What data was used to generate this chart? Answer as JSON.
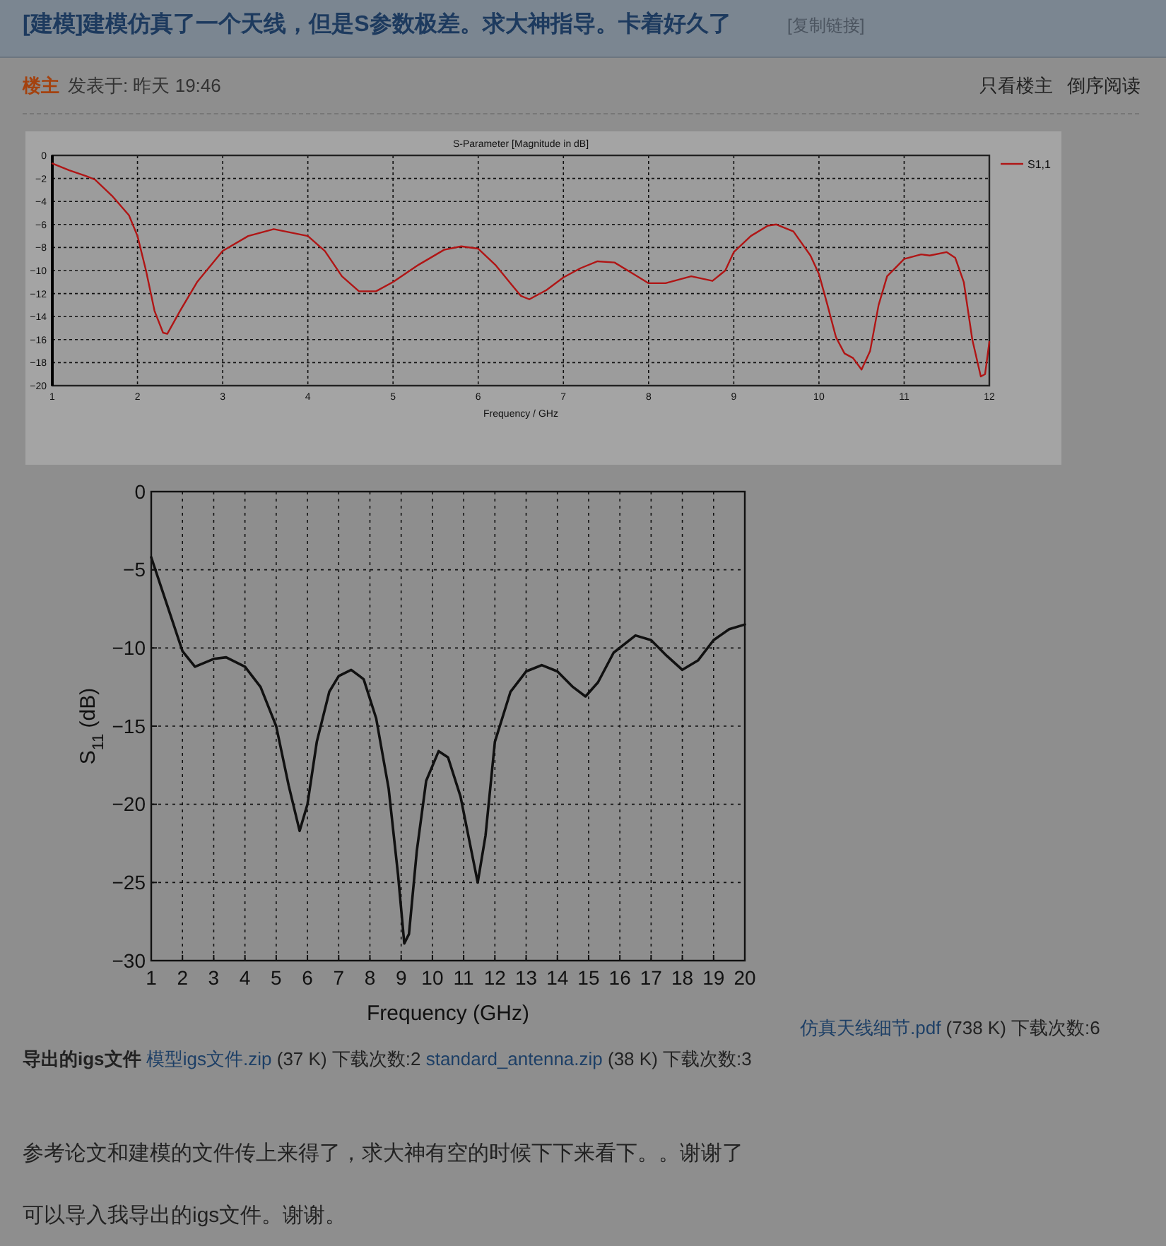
{
  "chart_data": [
    {
      "type": "line",
      "title": "S-Parameter [Magnitude in dB]",
      "xlabel": "Frequency / GHz",
      "xlim": [
        1,
        12
      ],
      "xticks": [
        1,
        2,
        3,
        4,
        5,
        6,
        7,
        8,
        9,
        10,
        11,
        12
      ],
      "ylim": [
        -20,
        0
      ],
      "yticks": [
        0,
        -2,
        -4,
        -6,
        -8,
        -10,
        -12,
        -14,
        -16,
        -18,
        -20
      ],
      "grid": true,
      "legend": "right",
      "annotations": [
        "[建模]建模仿真了一个天线，但是S参数极差。求大神指导。卡着好久了",
        "[复制链接]",
        "楼主",
        "发表于: 昨天 19:46",
        "只看楼主",
        "倒序阅读"
      ],
      "series": [
        {
          "name": "S1,1",
          "color": "#b01515",
          "x": [
            1,
            1.2,
            1.4,
            1.5,
            1.7,
            1.9,
            2.0,
            2.1,
            2.2,
            2.3,
            2.35,
            2.5,
            2.7,
            3.0,
            3.3,
            3.6,
            4.0,
            4.2,
            4.4,
            4.6,
            4.8,
            5.0,
            5.3,
            5.6,
            5.8,
            6.0,
            6.2,
            6.4,
            6.5,
            6.6,
            6.8,
            7.0,
            7.2,
            7.4,
            7.6,
            7.8,
            8.0,
            8.2,
            8.5,
            8.75,
            8.9,
            9.0,
            9.2,
            9.4,
            9.5,
            9.7,
            9.9,
            10.0,
            10.1,
            10.2,
            10.3,
            10.4,
            10.5,
            10.6,
            10.7,
            10.8,
            11.0,
            11.2,
            11.3,
            11.5,
            11.6,
            11.7,
            11.8,
            11.9,
            11.95,
            12.0
          ],
          "values": [
            -0.7,
            -1.3,
            -1.8,
            -2.1,
            -3.5,
            -5.2,
            -7,
            -10,
            -13.5,
            -15.4,
            -15.5,
            -13.5,
            -11,
            -8.3,
            -7,
            -6.4,
            -7,
            -8.3,
            -10.5,
            -11.8,
            -11.8,
            -11,
            -9.5,
            -8.2,
            -7.9,
            -8.1,
            -9.5,
            -11.3,
            -12.2,
            -12.5,
            -11.7,
            -10.6,
            -9.8,
            -9.2,
            -9.3,
            -10.2,
            -11.1,
            -11.1,
            -10.5,
            -10.9,
            -10,
            -8.4,
            -7,
            -6.1,
            -6,
            -6.6,
            -8.7,
            -10.3,
            -13,
            -15.8,
            -17.2,
            -17.6,
            -18.6,
            -17,
            -13,
            -10.5,
            -9,
            -8.6,
            -8.7,
            -8.4,
            -8.9,
            -11,
            -16,
            -19.2,
            -19,
            -16.2
          ]
        }
      ]
    },
    {
      "type": "line",
      "xlabel": "Frequency (GHz)",
      "ylabel": "S$_{11}$ (dB)",
      "xlim": [
        1,
        20
      ],
      "xticks": [
        1,
        2,
        3,
        4,
        5,
        6,
        7,
        8,
        9,
        10,
        11,
        12,
        13,
        14,
        15,
        16,
        17,
        18,
        19,
        20
      ],
      "ylim": [
        -30,
        0
      ],
      "yticks": [
        0,
        -5,
        -10,
        -15,
        -20,
        -25,
        -30
      ],
      "grid": true,
      "annotations": [
        "仿真天线细节.pdf",
        "(738 K) 下载次数:6",
        "导出的igs文件",
        "模型igs文件.zip",
        "(37 K) 下载次数:2",
        "standard_antenna.zip",
        "(38 K) 下载次数:3",
        "参考论文和建模的文件传上来得了，求大神有空的时候下下来看下。。谢谢了",
        "可以导入我导出的igs文件。谢谢。"
      ],
      "series": [
        {
          "color": "#111111",
          "x": [
            1,
            1.5,
            2,
            2.4,
            3.0,
            3.4,
            4.0,
            4.5,
            5.0,
            5.4,
            5.75,
            6.0,
            6.3,
            6.7,
            7.0,
            7.4,
            7.8,
            8.2,
            8.6,
            8.9,
            9.1,
            9.25,
            9.5,
            9.8,
            10.2,
            10.5,
            10.9,
            11.3,
            11.45,
            11.7,
            12.0,
            12.5,
            13,
            13.5,
            14,
            14.5,
            14.9,
            15.3,
            15.8,
            16.5,
            17.0,
            17.5,
            18.0,
            18.5,
            19.0,
            19.5,
            20
          ],
          "values": [
            -4.2,
            -7.2,
            -10.2,
            -11.2,
            -10.7,
            -10.6,
            -11.2,
            -12.5,
            -15,
            -18.8,
            -21.7,
            -20,
            -16,
            -12.8,
            -11.8,
            -11.4,
            -12,
            -14.5,
            -19,
            -24.5,
            -28.9,
            -28.3,
            -23,
            -18.5,
            -16.6,
            -17,
            -19.5,
            -23.5,
            -25,
            -22,
            -16,
            -12.8,
            -11.5,
            -11.1,
            -11.5,
            -12.5,
            -13.1,
            -12.2,
            -10.3,
            -9.2,
            -9.5,
            -10.5,
            -11.4,
            -10.8,
            -9.5,
            -8.8,
            -8.5
          ]
        }
      ]
    }
  ]
}
